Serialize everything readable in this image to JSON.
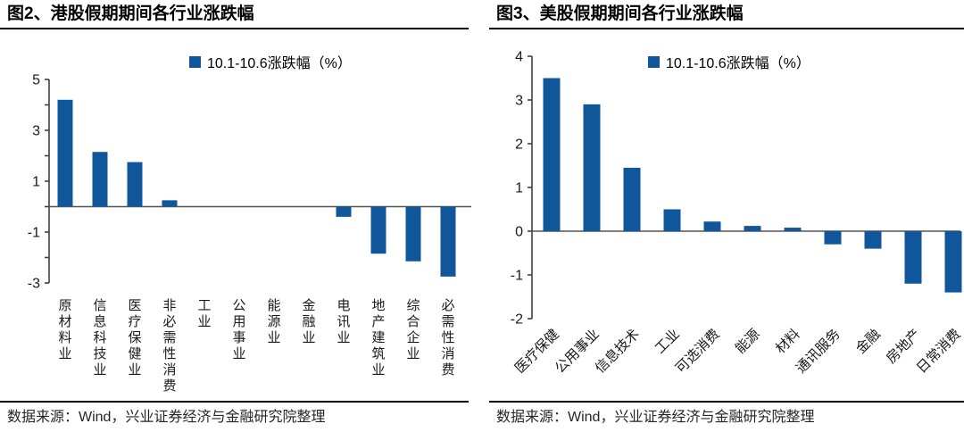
{
  "panels": [
    {
      "title": "图2、港股假期期间各行业涨跌幅",
      "legend": "10.1-10.6涨跌幅（%）",
      "source": "数据来源：Wind，兴业证券经济与金融研究院整理"
    },
    {
      "title": "图3、美股假期期间各行业涨跌幅",
      "legend": "10.1-10.6涨跌幅（%）",
      "source": "数据来源：Wind，兴业证券经济与金融研究院整理"
    }
  ],
  "chart_data": [
    {
      "type": "bar",
      "title": "图2、港股假期期间各行业涨跌幅",
      "legend": "10.1-10.6涨跌幅（%）",
      "legend_position": "top",
      "categories": [
        "原材料业",
        "信息科技业",
        "医疗保健业",
        "非必需性消费",
        "工业",
        "公用事业",
        "能源业",
        "金融业",
        "电讯业",
        "地产建筑业",
        "综合企业",
        "必需性消费"
      ],
      "values": [
        4.2,
        2.15,
        1.75,
        0.25,
        0,
        0,
        0,
        0,
        -0.4,
        -1.85,
        -2.15,
        -2.75
      ],
      "ylim": [
        -3,
        5
      ],
      "ytick_label_step": 2,
      "ytick_minor_step": 1,
      "yticks_labeled": [
        5,
        3,
        1,
        -1,
        -3
      ],
      "grid": false,
      "bar_color": "#10569B",
      "axis_color": "#404040",
      "xlabel": "",
      "ylabel": ""
    },
    {
      "type": "bar",
      "title": "图3、美股假期期间各行业涨跌幅",
      "legend": "10.1-10.6涨跌幅（%）",
      "legend_position": "top",
      "categories": [
        "医疗保健",
        "公用事业",
        "信息技术",
        "工业",
        "可选消费",
        "能源",
        "材料",
        "通讯服务",
        "金融",
        "房地产",
        "日常消费"
      ],
      "values": [
        3.5,
        2.9,
        1.45,
        0.5,
        0.22,
        0.12,
        0.08,
        -0.3,
        -0.4,
        -1.2,
        -1.4
      ],
      "ylim": [
        -2,
        4
      ],
      "ytick_label_step": 1,
      "ytick_minor_step": 1,
      "yticks_labeled": [
        4,
        3,
        2,
        1,
        0,
        -1,
        -2
      ],
      "grid": false,
      "bar_color": "#10569B",
      "axis_color": "#404040",
      "xlabel": "",
      "ylabel": ""
    }
  ]
}
